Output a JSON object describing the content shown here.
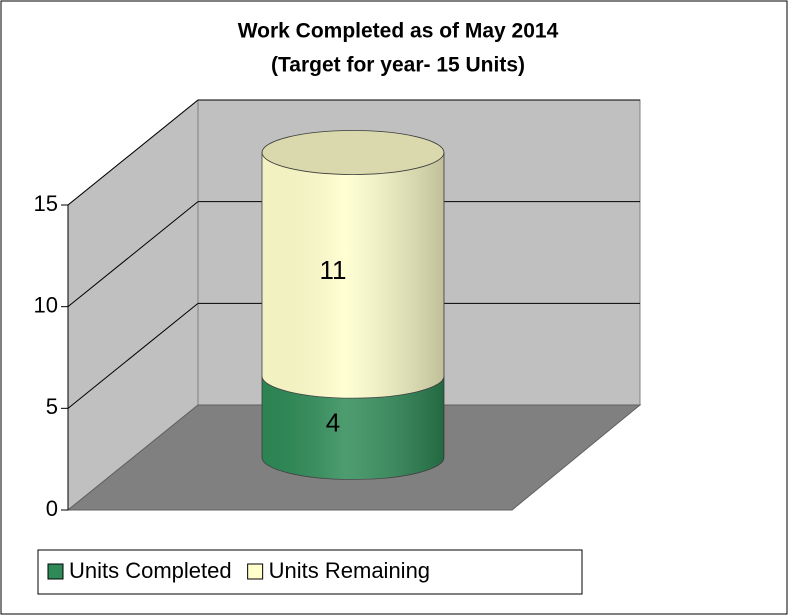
{
  "chart_data": {
    "type": "bar",
    "stacked": true,
    "three_d": "cylinder",
    "title": "Work Completed as of May 2014",
    "subtitle": "(Target for year- 15 Units)",
    "categories": [
      null
    ],
    "series": [
      {
        "name": "Units Completed",
        "color": "#2e8b57",
        "values": [
          4
        ]
      },
      {
        "name": "Units Remaining",
        "color": "#ffffcc",
        "values": [
          11
        ]
      }
    ],
    "ylim": [
      0,
      15
    ],
    "yticks": [
      0,
      5,
      10,
      15
    ],
    "grid": true,
    "legend": "bottom"
  }
}
